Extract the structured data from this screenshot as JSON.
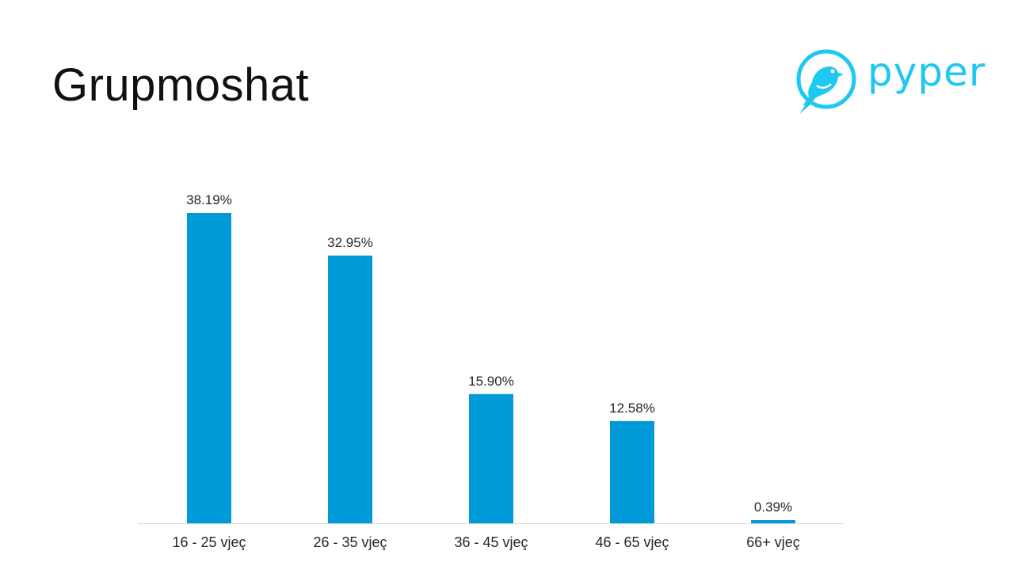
{
  "slide": {
    "title": "Grupmoshat"
  },
  "logo": {
    "text": "pyper",
    "icon": "bird-icon",
    "color": "#1ec8f0"
  },
  "chart_data": {
    "type": "bar",
    "title": "",
    "xlabel": "",
    "ylabel": "",
    "categories": [
      "16 - 25 vjeç",
      "26 - 35 vjeç",
      "36 - 45 vjeç",
      "46 - 65 vjeç",
      "66+ vjeç"
    ],
    "values": [
      38.19,
      32.95,
      15.9,
      12.58,
      0.39
    ],
    "data_labels": [
      "38.19%",
      "32.95%",
      "15.90%",
      "12.58%",
      "0.39%"
    ],
    "ylim": [
      0,
      38.19
    ],
    "bar_color": "#009ad8",
    "axis_color": "#d9d9d9",
    "grid": false,
    "legend": "none"
  }
}
